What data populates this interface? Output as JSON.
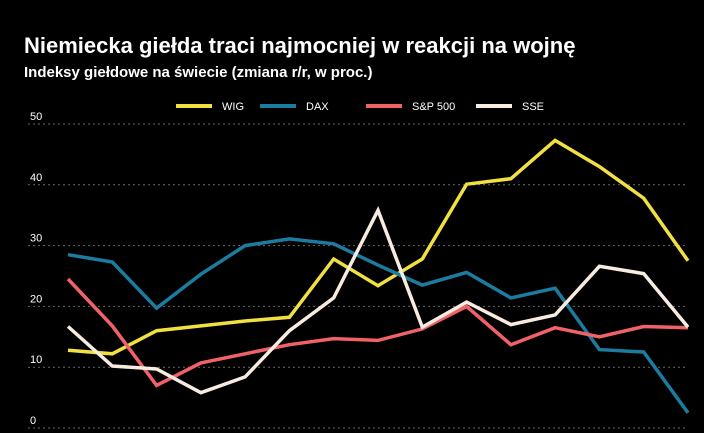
{
  "chart_data": {
    "type": "line",
    "title": "Niemiecka giełda traci najmocniej w reakcji na wojnę",
    "subtitle": "Indeksy giełdowe na świecie (zmiana r/r, w proc.)",
    "xlabel": "",
    "ylabel": "",
    "ylim": [
      0,
      50
    ],
    "yticks": [
      0,
      10,
      20,
      30,
      40,
      50
    ],
    "grid": true,
    "legend_position": "top",
    "series": [
      {
        "name": "WIG",
        "color": "#f0e040",
        "values": [
          12.8,
          12.2,
          16.0,
          16.8,
          17.6,
          18.2,
          27.8,
          23.4,
          27.8,
          40.1,
          41.0,
          47.3,
          43.0,
          37.8,
          27.5
        ]
      },
      {
        "name": "DAX",
        "color": "#1c7ca0",
        "values": [
          28.5,
          27.3,
          19.7,
          25.3,
          30.0,
          31.1,
          30.3,
          26.8,
          23.5,
          25.6,
          21.4,
          23.0,
          12.9,
          12.5,
          2.5
        ]
      },
      {
        "name": "S&P 500",
        "color": "#f06268",
        "values": [
          24.5,
          16.8,
          7.0,
          10.7,
          12.2,
          13.7,
          14.7,
          14.4,
          16.3,
          20.0,
          13.7,
          16.5,
          15.0,
          16.7,
          16.5
        ]
      },
      {
        "name": "SSE",
        "color": "#f8ece0",
        "values": [
          16.7,
          10.2,
          9.7,
          5.8,
          8.4,
          16.0,
          21.4,
          35.8,
          16.6,
          20.7,
          17.0,
          18.6,
          26.6,
          25.4,
          16.6
        ]
      }
    ]
  }
}
